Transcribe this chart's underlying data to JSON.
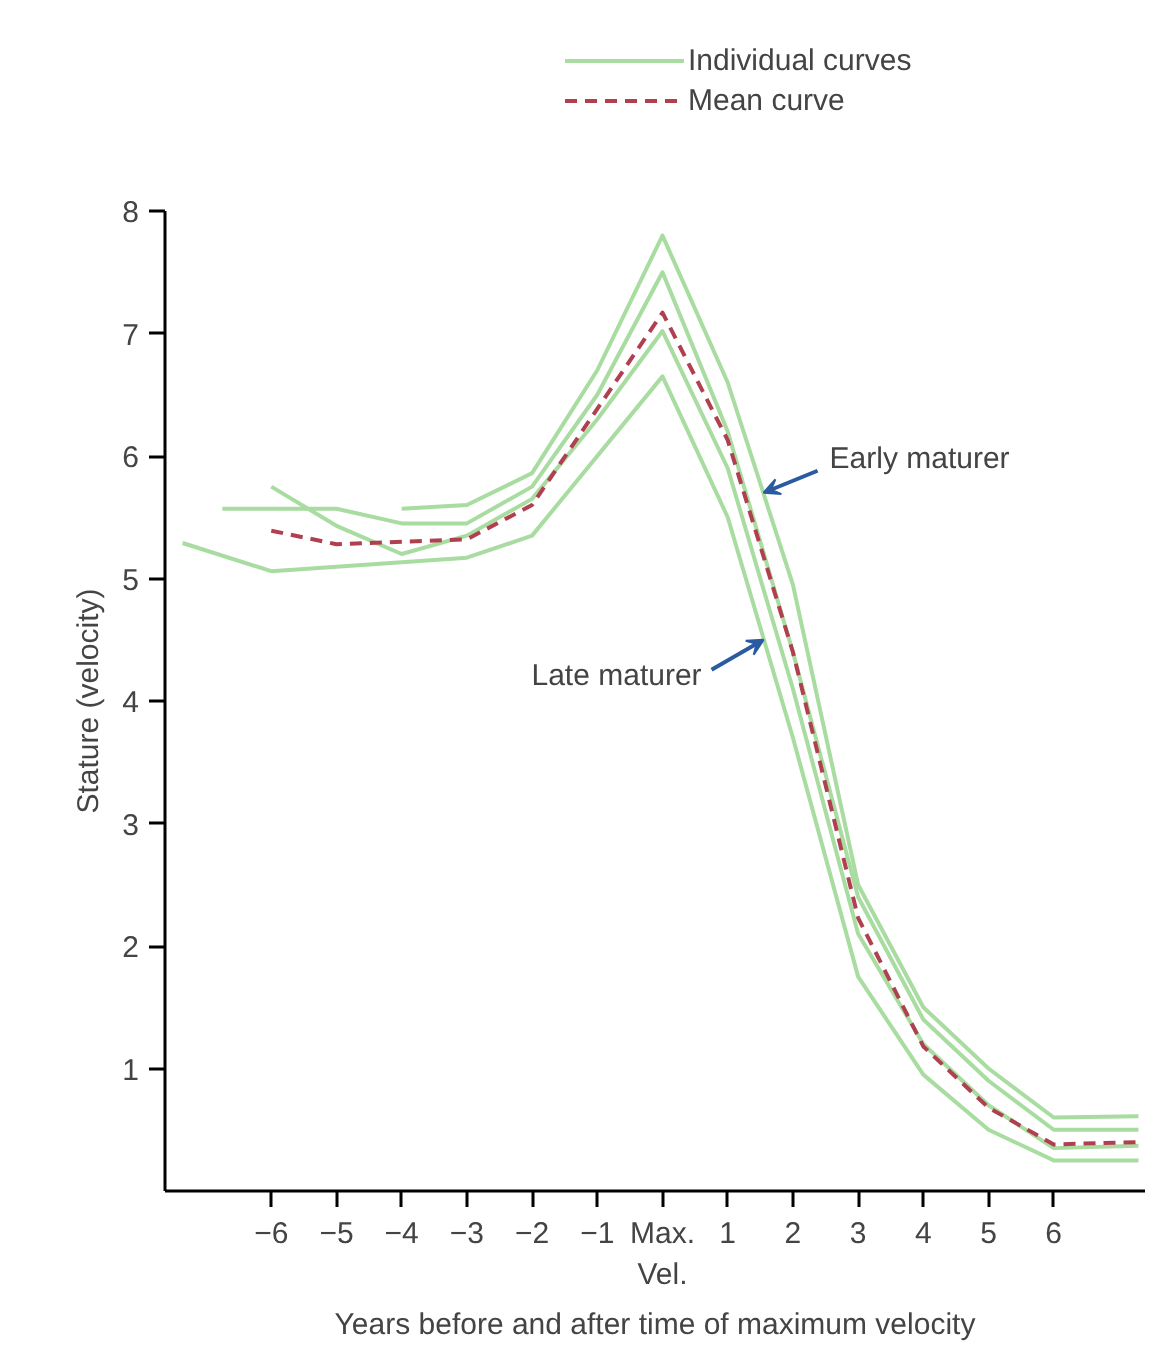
{
  "chart_data": {
    "type": "line",
    "xlabel": "Years before and after time of maximum velocity",
    "ylabel": "Stature (velocity)",
    "xlim": [
      -7.63,
      7.4
    ],
    "ylim": [
      0,
      8
    ],
    "xticks": [
      -6,
      -5,
      -4,
      -3,
      -2,
      -1,
      {
        "value": 0,
        "label": "Max.\nVel."
      },
      1,
      2,
      3,
      4,
      5,
      6
    ],
    "yticks": [
      1,
      2,
      3,
      4,
      5,
      6,
      7,
      8
    ],
    "grid": false,
    "legend": "top",
    "marker": "none",
    "series": [
      {
        "name": "Individual curves",
        "color": "#a8dca0",
        "line_style": "solid",
        "x": [
          -7.36,
          -6,
          -3,
          -2,
          0,
          1,
          2,
          3,
          4,
          5,
          6,
          7.3
        ],
        "values": [
          5.29,
          5.06,
          5.17,
          5.35,
          6.65,
          5.5,
          3.7,
          1.75,
          0.95,
          0.5,
          0.25,
          0.25
        ]
      },
      {
        "color": "#a8dca0",
        "line_style": "solid",
        "x": [
          -4,
          -3,
          -2,
          -1,
          0,
          1,
          2,
          3,
          4,
          5,
          6,
          7.3
        ],
        "values": [
          5.57,
          5.6,
          5.86,
          6.7,
          7.8,
          6.6,
          4.95,
          2.5,
          1.5,
          1.0,
          0.6,
          0.61
        ]
      },
      {
        "color": "#a8dca0",
        "line_style": "solid",
        "x": [
          -6.75,
          -5,
          -4,
          -3,
          -2,
          -1,
          0,
          1,
          2,
          3,
          4,
          5,
          6,
          7.3
        ],
        "values": [
          5.57,
          5.57,
          5.45,
          5.45,
          5.75,
          6.5,
          7.5,
          6.2,
          4.4,
          2.4,
          1.4,
          0.9,
          0.5,
          0.5
        ]
      },
      {
        "color": "#a8dca0",
        "line_style": "solid",
        "x": [
          -6,
          -5,
          -4,
          -3,
          -2,
          -1,
          0,
          1,
          2,
          3,
          4,
          5,
          6,
          7.3
        ],
        "values": [
          5.75,
          5.43,
          5.2,
          5.35,
          5.65,
          6.3,
          7.02,
          5.9,
          4.1,
          2.1,
          1.2,
          0.7,
          0.35,
          0.37
        ]
      },
      {
        "name": "Mean curve",
        "color": "#b04050",
        "line_style": "dashed",
        "x": [
          -6,
          -5,
          -3,
          -2,
          0,
          1,
          2,
          3,
          4,
          5,
          6,
          7.35
        ],
        "values": [
          5.39,
          5.28,
          5.32,
          5.6,
          7.17,
          6.13,
          4.4,
          2.23,
          1.18,
          0.68,
          0.38,
          0.4
        ]
      }
    ],
    "annotations": [
      {
        "text": "Early maturer",
        "x": 1.55,
        "y": 5.7
      },
      {
        "text": "Late maturer",
        "x": 1.55,
        "y": 4.5
      }
    ]
  }
}
